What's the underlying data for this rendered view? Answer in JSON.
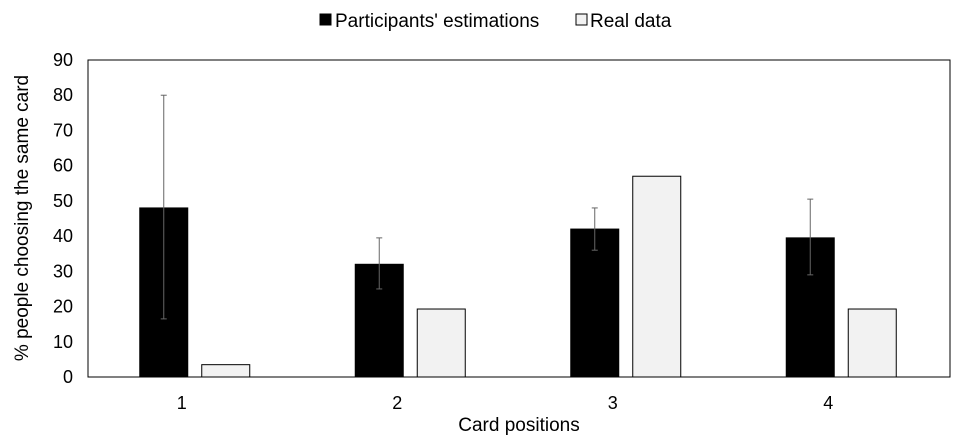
{
  "chart_data": {
    "type": "bar",
    "categories": [
      "1",
      "2",
      "3",
      "4"
    ],
    "series": [
      {
        "name": "Participants' estimations",
        "color": "#000000",
        "values": [
          48,
          32,
          42,
          39.5
        ],
        "error_low": [
          16.5,
          25,
          36,
          29
        ],
        "error_high": [
          80,
          39.5,
          48,
          50.5
        ]
      },
      {
        "name": "Real data",
        "color": "#f2f2f2",
        "values": [
          3.5,
          19.3,
          57,
          19.3
        ]
      }
    ],
    "xlabel": "Card positions",
    "ylabel": "% people choosing the same card",
    "ylim": [
      0,
      90
    ],
    "yticks": [
      0,
      10,
      20,
      30,
      40,
      50,
      60,
      70,
      80,
      90
    ],
    "grid": false,
    "legend_position": "top-center"
  }
}
